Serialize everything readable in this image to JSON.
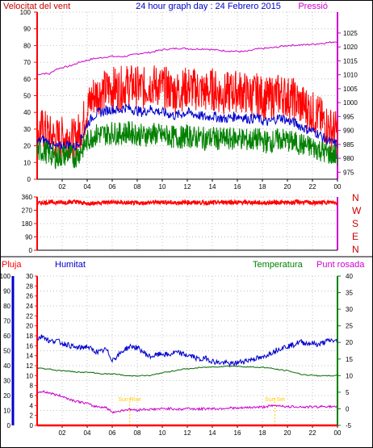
{
  "chart_data": [
    {
      "type": "line",
      "title": "24 hour graph day : 24 Febrero 2015",
      "left_axis_title": "Velocitat del vent",
      "right_axis_title": "Pressió",
      "x_tick_labels": [
        "02",
        "04",
        "06",
        "08",
        "10",
        "12",
        "14",
        "16",
        "18",
        "20",
        "22",
        "00"
      ],
      "xlim": [
        0,
        24
      ],
      "left_ylim": [
        0,
        100
      ],
      "left_ticks": [
        0,
        10,
        20,
        30,
        40,
        50,
        60,
        70,
        80,
        90,
        100
      ],
      "right_ylim": [
        972.5,
        1032.5
      ],
      "right_ticks": [
        975,
        980,
        985,
        990,
        995,
        1000,
        1005,
        1010,
        1015,
        1020,
        1025
      ],
      "grid": true,
      "series": [
        {
          "axis": "right",
          "color": "#cc00cc",
          "x": [
            0,
            0.5,
            1,
            1.5,
            2,
            2.5,
            3,
            3.5,
            4,
            4.5,
            5,
            5.5,
            6,
            6.5,
            7,
            7.5,
            8,
            8.5,
            9,
            9.5,
            10,
            10.5,
            11,
            11.5,
            12,
            12.5,
            13,
            13.5,
            14,
            14.5,
            15,
            15.5,
            16,
            16.5,
            17,
            17.5,
            18,
            18.5,
            19,
            19.5,
            20,
            20.5,
            21,
            21.5,
            22,
            22.5,
            23,
            23.5,
            24
          ],
          "values": [
            1010,
            1010.5,
            1010.3,
            1012,
            1012.6,
            1013,
            1013.8,
            1014.7,
            1015.2,
            1015.8,
            1016,
            1016.4,
            1016.6,
            1016.5,
            1016.6,
            1017,
            1017.5,
            1017.8,
            1018,
            1018.5,
            1019,
            1019.2,
            1019.4,
            1019.5,
            1019.4,
            1019.2,
            1019.3,
            1019.3,
            1019.0,
            1018.8,
            1018.6,
            1018.5,
            1018.4,
            1018.3,
            1018.6,
            1019.2,
            1019.4,
            1019.6,
            1019.8,
            1020.2,
            1020.5,
            1020.6,
            1020.7,
            1020.8,
            1021,
            1021.2,
            1021.4,
            1021.7,
            1022
          ]
        },
        {
          "axis": "left",
          "color": "#ff0000",
          "x": [
            0,
            0.5,
            1,
            1.5,
            2,
            2.5,
            3,
            3.5,
            4,
            4.5,
            5,
            5.5,
            6,
            6.5,
            7,
            7.5,
            8,
            8.5,
            9,
            9.5,
            10,
            10.5,
            11,
            11.5,
            12,
            12.5,
            13,
            13.5,
            14,
            14.5,
            15,
            15.5,
            16,
            16.5,
            17,
            17.5,
            18,
            18.5,
            19,
            19.5,
            20,
            20.5,
            21,
            21.5,
            22,
            22.5,
            23,
            23.5,
            24
          ],
          "values": [
            28,
            30,
            26,
            24,
            25,
            26,
            23,
            30,
            42,
            50,
            52,
            53,
            55,
            54,
            56,
            56,
            55,
            54,
            57,
            56,
            55,
            54,
            52,
            53,
            55,
            54,
            53,
            52,
            54,
            52,
            51,
            52,
            53,
            52,
            50,
            51,
            49,
            48,
            50,
            51,
            49,
            48,
            45,
            43,
            40,
            38,
            33,
            30,
            28
          ]
        },
        {
          "axis": "left",
          "color": "#0000cc",
          "x": [
            0,
            0.5,
            1,
            1.5,
            2,
            2.5,
            3,
            3.5,
            4,
            4.5,
            5,
            5.5,
            6,
            6.5,
            7,
            7.5,
            8,
            8.5,
            9,
            9.5,
            10,
            10.5,
            11,
            11.5,
            12,
            12.5,
            13,
            13.5,
            14,
            14.5,
            15,
            15.5,
            16,
            16.5,
            17,
            17.5,
            18,
            18.5,
            19,
            19.5,
            20,
            20.5,
            21,
            21.5,
            22,
            22.5,
            23,
            23.5,
            24
          ],
          "values": [
            22,
            24,
            21,
            19,
            20,
            21,
            19,
            24,
            33,
            38,
            40,
            41,
            42,
            41,
            43,
            42,
            41,
            40,
            42,
            41,
            40,
            39,
            38,
            39,
            40,
            39,
            38,
            37,
            38,
            37,
            36,
            37,
            38,
            37,
            36,
            37,
            35,
            34,
            36,
            37,
            35,
            34,
            32,
            30,
            29,
            27,
            24,
            22,
            21
          ]
        },
        {
          "axis": "left",
          "color": "#008000",
          "x": [
            0,
            0.5,
            1,
            1.5,
            2,
            2.5,
            3,
            3.5,
            4,
            4.5,
            5,
            5.5,
            6,
            6.5,
            7,
            7.5,
            8,
            8.5,
            9,
            9.5,
            10,
            10.5,
            11,
            11.5,
            12,
            12.5,
            13,
            13.5,
            14,
            14.5,
            15,
            15.5,
            16,
            16.5,
            17,
            17.5,
            18,
            18.5,
            19,
            19.5,
            20,
            20.5,
            21,
            21.5,
            22,
            22.5,
            23,
            23.5,
            24
          ],
          "values": [
            16,
            17,
            15,
            13,
            14,
            15,
            13,
            17,
            23,
            26,
            27,
            27,
            28,
            27,
            28,
            28,
            27,
            26,
            27,
            27,
            26,
            26,
            25,
            25,
            26,
            25,
            25,
            24,
            25,
            24,
            24,
            24,
            25,
            24,
            23,
            24,
            23,
            22,
            23,
            24,
            23,
            22,
            21,
            20,
            19,
            18,
            16,
            15,
            14
          ]
        }
      ]
    },
    {
      "type": "line",
      "direction_labels": [
        "N",
        "W",
        "S",
        "E",
        "N"
      ],
      "x_tick_labels": [
        "02",
        "04",
        "06",
        "08",
        "10",
        "12",
        "14",
        "16",
        "18",
        "20",
        "22",
        "00"
      ],
      "xlim": [
        0,
        24
      ],
      "ylim": [
        0,
        360
      ],
      "y_ticks": [
        0,
        90,
        180,
        270,
        360
      ],
      "grid": true,
      "series": [
        {
          "color": "#ff0000",
          "x": [
            0,
            1,
            2,
            3,
            4,
            5,
            6,
            7,
            8,
            9,
            10,
            11,
            12,
            13,
            14,
            15,
            16,
            17,
            18,
            19,
            20,
            21,
            22,
            23,
            24
          ],
          "values": [
            318,
            325,
            322,
            328,
            315,
            322,
            325,
            320,
            318,
            322,
            326,
            320,
            324,
            322,
            320,
            326,
            322,
            324,
            320,
            323,
            322,
            326,
            320,
            324,
            322
          ]
        }
      ]
    },
    {
      "type": "line",
      "left_axis_titles": [
        "Pluja",
        "Humitat"
      ],
      "right_axis_titles": [
        "Temperatura",
        "Punt rosada"
      ],
      "x_tick_labels": [
        "02",
        "04",
        "06",
        "08",
        "10",
        "12",
        "14",
        "16",
        "18",
        "20",
        "22",
        "00"
      ],
      "xlim": [
        0,
        24
      ],
      "humidity_ylim": [
        0,
        100
      ],
      "humidity_ticks": [
        0,
        10,
        20,
        30,
        40,
        50,
        60,
        70,
        80,
        90,
        100
      ],
      "rain_ylim": [
        0,
        30
      ],
      "rain_ticks": [
        0,
        2,
        4,
        6,
        8,
        10,
        12,
        14,
        16,
        18,
        20,
        22,
        24,
        26,
        28,
        30
      ],
      "temperature_ylim": [
        -5,
        40
      ],
      "temperature_ticks": [
        -5,
        0,
        5,
        10,
        15,
        20,
        25,
        30,
        35,
        40
      ],
      "grid": true,
      "annotations": [
        {
          "text": "Sun Rise",
          "x": 7.4
        },
        {
          "text": "Sun Set",
          "x": 19.0
        }
      ],
      "series": [
        {
          "axis": "humidity",
          "color": "#0000cc",
          "x": [
            0,
            0.5,
            1,
            1.5,
            2,
            2.5,
            3,
            3.5,
            4,
            4.5,
            5,
            5.5,
            6,
            6.5,
            7,
            7.5,
            8,
            8.5,
            9,
            9.5,
            10,
            10.5,
            11,
            11.5,
            12,
            12.5,
            13,
            13.5,
            14,
            14.5,
            15,
            15.5,
            16,
            16.5,
            17,
            17.5,
            18,
            18.5,
            19,
            19.5,
            20,
            20.5,
            21,
            21.5,
            22,
            22.5,
            23,
            23.5,
            24
          ],
          "values": [
            58,
            60,
            56,
            57,
            55,
            54,
            52,
            52,
            53,
            50,
            49,
            51,
            44,
            47,
            51,
            53,
            52,
            49,
            46,
            47,
            48,
            47,
            49,
            48,
            47,
            46,
            44,
            45,
            43,
            42,
            42,
            41,
            42,
            43,
            44,
            45,
            45,
            48,
            50,
            52,
            53,
            54,
            56,
            55,
            55,
            54,
            56,
            57,
            56
          ]
        },
        {
          "axis": "temperature",
          "color": "#006600",
          "x": [
            0,
            0.5,
            1,
            1.5,
            2,
            2.5,
            3,
            3.5,
            4,
            4.5,
            5,
            5.5,
            6,
            6.5,
            7,
            7.5,
            8,
            8.5,
            9,
            9.5,
            10,
            10.5,
            11,
            11.5,
            12,
            12.5,
            13,
            13.5,
            14,
            14.5,
            15,
            15.5,
            16,
            16.5,
            17,
            17.5,
            18,
            18.5,
            19,
            19.5,
            20,
            20.5,
            21,
            21.5,
            22,
            22.5,
            23,
            23.5,
            24
          ],
          "values": [
            12.4,
            12.1,
            12,
            11.6,
            11.5,
            11.3,
            11.2,
            11,
            11,
            10.9,
            10.6,
            10.5,
            10.5,
            10.4,
            10,
            9.9,
            10,
            10,
            10,
            10.4,
            10.9,
            11.1,
            11.5,
            11.9,
            12,
            12.2,
            12.4,
            12.5,
            12.6,
            12.7,
            12.8,
            12.9,
            12.8,
            12.7,
            12.6,
            12.5,
            12.5,
            12.3,
            12,
            11.7,
            11.5,
            11,
            10.5,
            10.2,
            10.1,
            10,
            9.9,
            10,
            10
          ]
        },
        {
          "axis": "temperature",
          "color": "#cc00cc",
          "x": [
            0,
            0.5,
            1,
            1.5,
            2,
            2.5,
            3,
            3.5,
            4,
            4.5,
            5,
            5.5,
            6,
            6.5,
            7,
            7.5,
            8,
            8.5,
            9,
            9.5,
            10,
            10.5,
            11,
            11.5,
            12,
            12.5,
            13,
            13.5,
            14,
            14.5,
            15,
            15.5,
            16,
            16.5,
            17,
            17.5,
            18,
            18.5,
            19,
            19.5,
            20,
            20.5,
            21,
            21.5,
            22,
            22.5,
            23,
            23.5,
            24
          ],
          "values": [
            5,
            5.2,
            4.8,
            4.2,
            3.8,
            3,
            2.4,
            2,
            1.6,
            0.8,
            0.6,
            0.4,
            -1,
            -0.8,
            -0.3,
            -0.2,
            -0.4,
            -0.1,
            -0.2,
            -0.1,
            0,
            0.1,
            0,
            -0.2,
            0.2,
            0,
            -0.1,
            0.1,
            0.1,
            0,
            0.2,
            0.3,
            0.1,
            0.3,
            0.4,
            0.5,
            0.5,
            0.8,
            0.9,
            1,
            0.5,
            0.7,
            0.6,
            0.5,
            0.6,
            0.6,
            0.8,
            0.6,
            0.5
          ]
        },
        {
          "axis": "rain",
          "color": "#ff0000",
          "x": [
            0,
            24
          ],
          "values": [
            0,
            0
          ]
        }
      ]
    }
  ],
  "colors": {
    "wind_title": "#cc0000",
    "pressure_title": "#cc00cc",
    "graph_title": "#0000cc",
    "left_axis": "#ff0000",
    "pressure_axis": "#cc00cc",
    "direction_axis": "#cc0000",
    "humidity_axis": "#0000cc",
    "temperature_axis": "#008000",
    "sun_annotation": "#ffcc00",
    "grid": "#c0c0c0"
  }
}
